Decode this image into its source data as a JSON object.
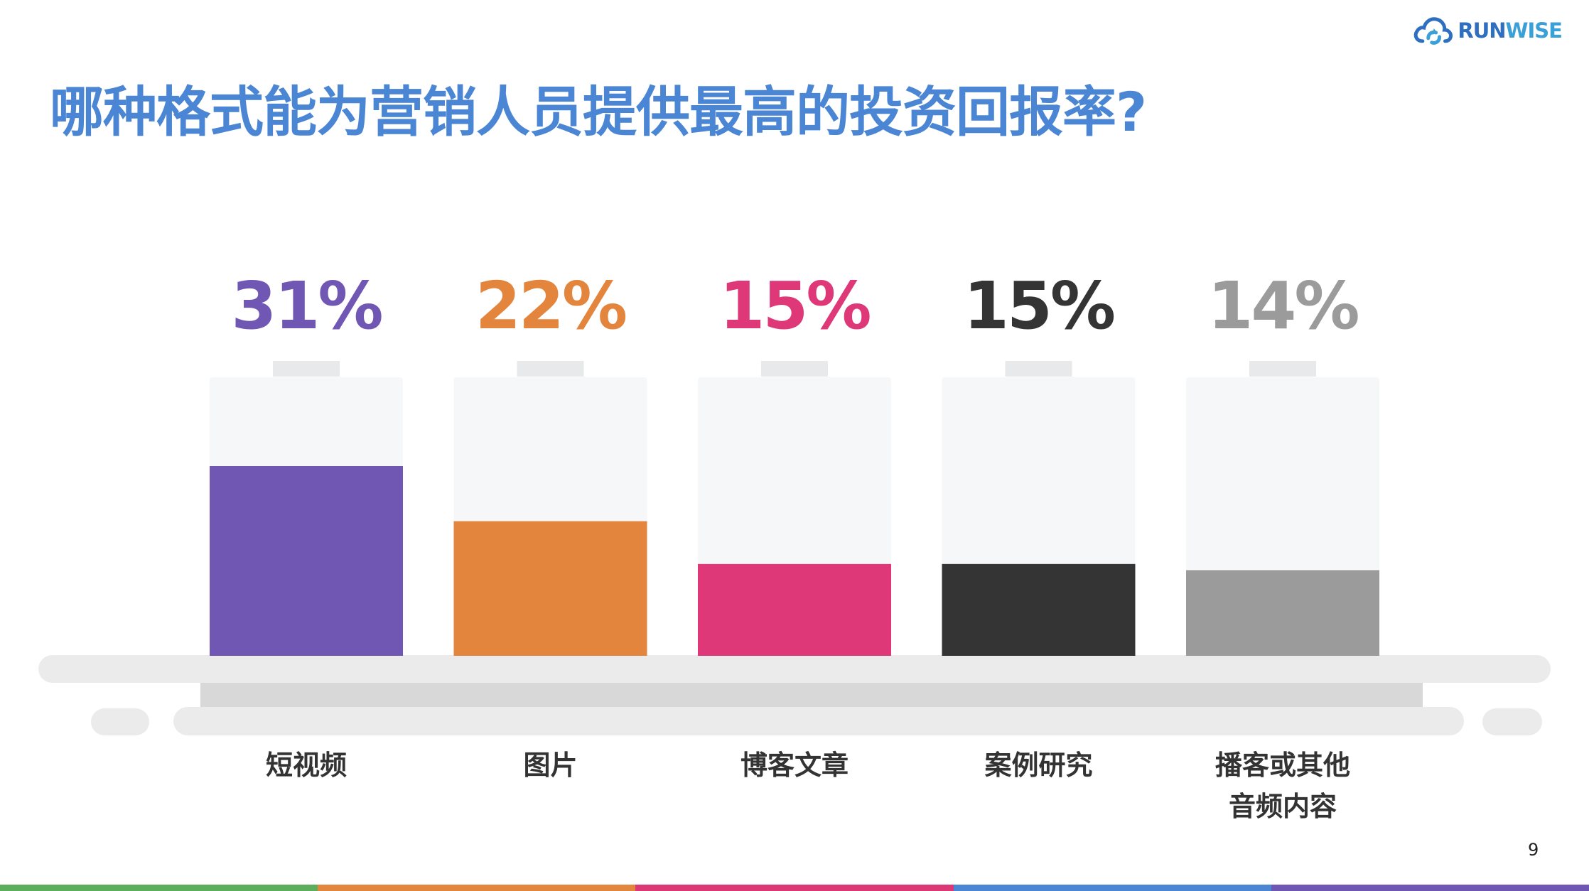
{
  "logo": {
    "text_run": "RUN",
    "text_wise": "WISE",
    "icon": "cloud-refresh-icon"
  },
  "title": "哪种格式能为营销人员提供最高的投资回报率?",
  "page_number": "9",
  "colors": {
    "title": "#4a86d4",
    "battery_bg": "#f6f7f9",
    "battery_cap": "#e8e9eb",
    "base_light": "#ebebeb",
    "base_dark": "#d8d8d8"
  },
  "bottom_strip_colors": [
    "#5cad5c",
    "#e2853d",
    "#dc3876",
    "#4a86d4",
    "#6e56b2"
  ],
  "chart_data": {
    "type": "bar",
    "title": "哪种格式能为营销人员提供最高的投资回报率?",
    "ylim": [
      0,
      50
    ],
    "grid": false,
    "legend": "none",
    "categories": [
      {
        "line1": "短视频",
        "line2": ""
      },
      {
        "line1": "图片",
        "line2": ""
      },
      {
        "line1": "博客文章",
        "line2": ""
      },
      {
        "line1": "案例研究",
        "line2": ""
      },
      {
        "line1": "播客或其他",
        "line2": "音频内容"
      }
    ],
    "values": [
      31,
      22,
      15,
      15,
      14
    ],
    "value_labels": [
      "31%",
      "22%",
      "15%",
      "15%",
      "14%"
    ],
    "colors": [
      "#7057b4",
      "#e3853d",
      "#de3878",
      "#343434",
      "#9b9b9b"
    ]
  }
}
